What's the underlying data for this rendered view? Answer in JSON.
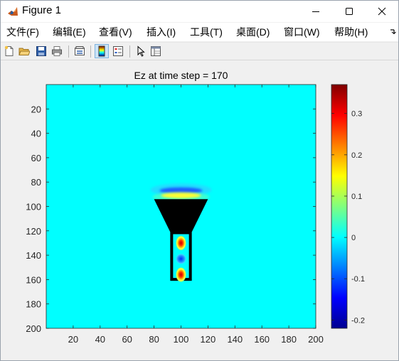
{
  "window": {
    "title": "Figure 1",
    "buttons": [
      "minimize",
      "maximize",
      "close"
    ]
  },
  "menubar": {
    "items": [
      {
        "label": "文件(F)"
      },
      {
        "label": "编辑(E)"
      },
      {
        "label": "查看(V)"
      },
      {
        "label": "插入(I)"
      },
      {
        "label": "工具(T)"
      },
      {
        "label": "桌面(D)"
      },
      {
        "label": "窗口(W)"
      },
      {
        "label": "帮助(H)"
      }
    ],
    "overflow_icon": "chevron-overflow-icon"
  },
  "toolbar": {
    "buttons": [
      {
        "icon": "new-figure-icon"
      },
      {
        "icon": "open-file-icon"
      },
      {
        "icon": "save-icon"
      },
      {
        "icon": "print-icon"
      },
      {
        "icon": "link-plot-icon"
      },
      {
        "icon": "insert-colorbar-icon",
        "active": true
      },
      {
        "icon": "insert-legend-icon"
      },
      {
        "icon": "edit-plot-arrow-icon"
      },
      {
        "icon": "property-inspector-icon"
      }
    ]
  },
  "chart_data": {
    "type": "heatmap",
    "title": "Ez at time step = 170",
    "xlabel": "",
    "ylabel": "",
    "xlim": [
      0,
      200
    ],
    "ylim": [
      200,
      0
    ],
    "xticks": [
      20,
      40,
      60,
      80,
      100,
      120,
      140,
      160,
      180,
      200
    ],
    "yticks": [
      20,
      40,
      60,
      80,
      100,
      120,
      140,
      160,
      180,
      200
    ],
    "colormap": "jet",
    "background_value": 0,
    "colorbar": {
      "range": [
        -0.22,
        0.37
      ],
      "ticks": [
        0.3,
        0.2,
        0.1,
        0,
        -0.1,
        -0.2
      ],
      "tick_labels": [
        "0.3",
        "0.2",
        "0.1",
        "0",
        "-0.1",
        "-0.2"
      ]
    },
    "features": [
      {
        "shape": "horn-trapezoid",
        "value": "PEC (black)",
        "x_top": [
          80,
          120
        ],
        "x_bottom": [
          92,
          108
        ],
        "y": [
          94,
          121
        ]
      },
      {
        "shape": "waveguide-walls",
        "value": "PEC (black)",
        "x": [
          92,
          108
        ],
        "y": [
          121,
          161
        ]
      },
      {
        "shape": "field-lobe",
        "x": 100,
        "y": 130,
        "value": 0.37
      },
      {
        "shape": "field-lobe",
        "x": 100,
        "y": 143,
        "value": -0.15
      },
      {
        "shape": "field-lobe",
        "x": 100,
        "y": 156,
        "value": 0.37
      },
      {
        "shape": "radiated-arc",
        "x": 100,
        "y": 87,
        "value": -0.12
      },
      {
        "shape": "radiated-arc",
        "x": 100,
        "y": 91,
        "value": 0.12
      }
    ],
    "grid": false,
    "legend": "none"
  }
}
